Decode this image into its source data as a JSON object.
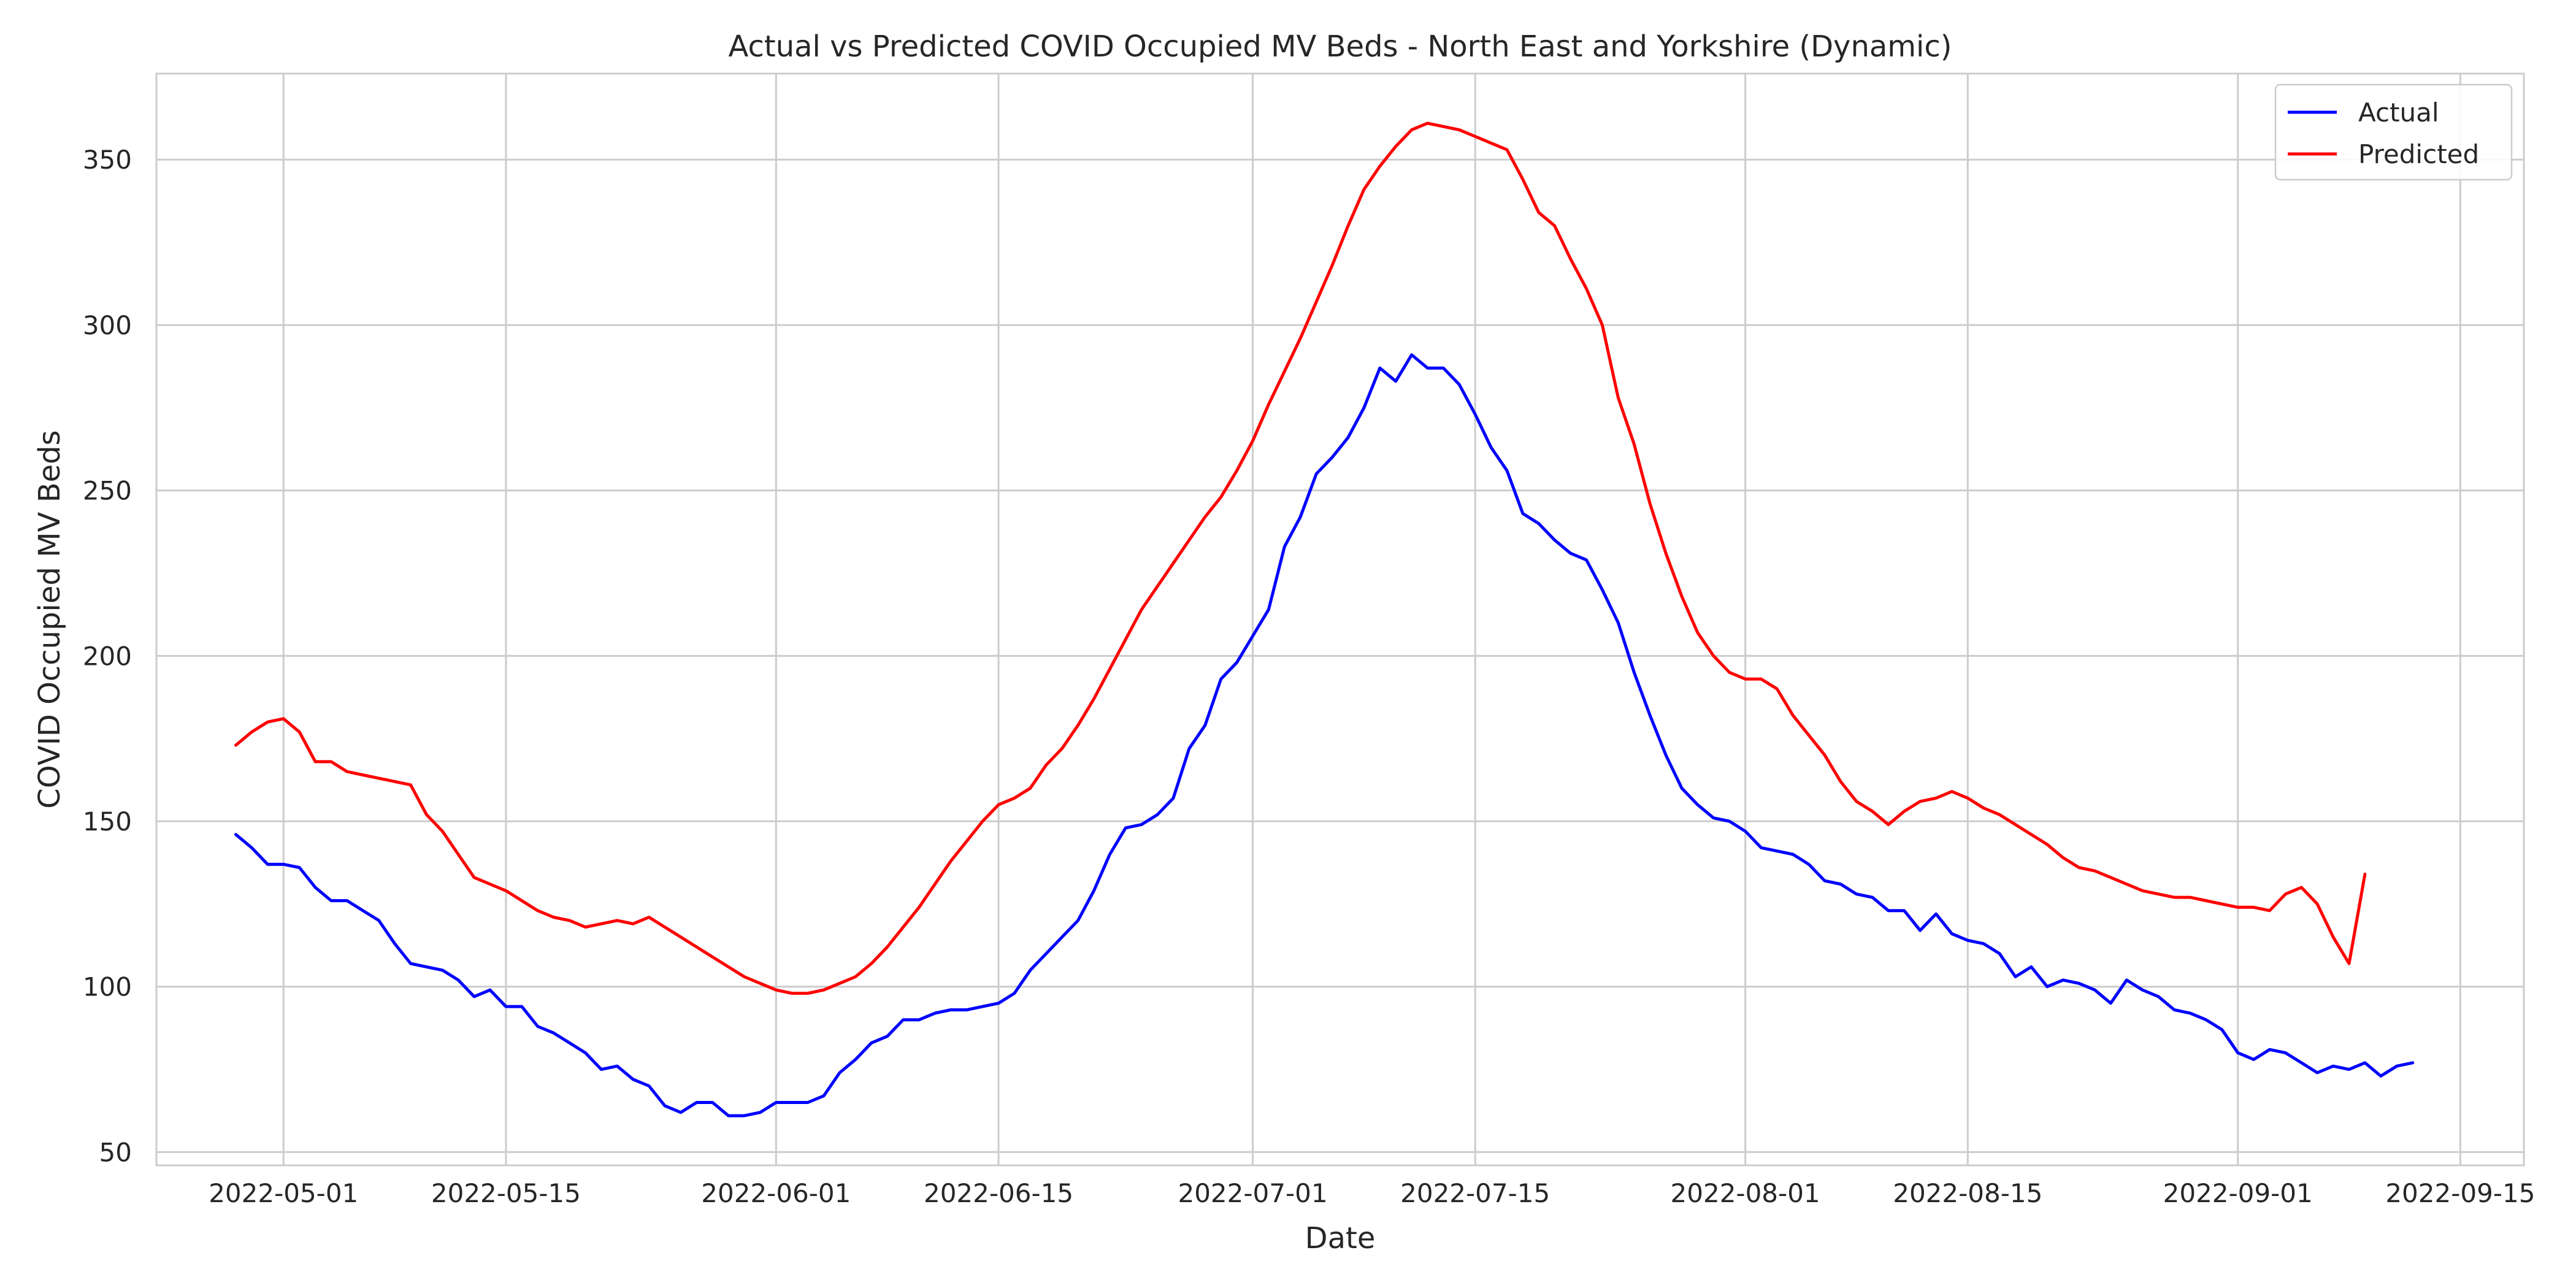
{
  "chart_data": {
    "type": "line",
    "title": "Actual vs Predicted COVID Occupied MV Beds - North East and Yorkshire (Dynamic)",
    "xlabel": "Date",
    "ylabel": "COVID Occupied MV Beds",
    "x_axis_type": "date",
    "xlim": [
      "2022-04-23",
      "2022-09-19"
    ],
    "ylim": [
      46,
      376
    ],
    "xticks": [
      "2022-05-01",
      "2022-05-15",
      "2022-06-01",
      "2022-06-15",
      "2022-07-01",
      "2022-07-15",
      "2022-08-01",
      "2022-08-15",
      "2022-09-01",
      "2022-09-15"
    ],
    "yticks": [
      50,
      100,
      150,
      200,
      250,
      300,
      350
    ],
    "grid": true,
    "legend_position": "top-right",
    "start_date": "2022-04-28",
    "series": [
      {
        "name": "Actual",
        "color": "#0000ff",
        "values": [
          146,
          142,
          137,
          137,
          136,
          130,
          126,
          126,
          123,
          120,
          113,
          107,
          106,
          105,
          102,
          97,
          99,
          94,
          94,
          88,
          86,
          83,
          80,
          75,
          76,
          72,
          70,
          64,
          62,
          65,
          65,
          61,
          61,
          62,
          65,
          65,
          65,
          67,
          74,
          78,
          83,
          85,
          90,
          90,
          92,
          93,
          93,
          94,
          95,
          98,
          105,
          110,
          115,
          120,
          129,
          140,
          148,
          149,
          152,
          157,
          172,
          179,
          193,
          198,
          206,
          214,
          233,
          242,
          255,
          260,
          266,
          275,
          287,
          283,
          291,
          287,
          287,
          282,
          273,
          263,
          256,
          243,
          240,
          235,
          231,
          229,
          220,
          210,
          195,
          182,
          170,
          160,
          155,
          151,
          150,
          147,
          142,
          141,
          140,
          137,
          132,
          131,
          128,
          127,
          123,
          123,
          117,
          122,
          116,
          114,
          113,
          110,
          103,
          106,
          100,
          102,
          101,
          99,
          95,
          102,
          99,
          97,
          93,
          92,
          90,
          87,
          80,
          78,
          81,
          80,
          77,
          74,
          76,
          75,
          77,
          73,
          76,
          77
        ]
      },
      {
        "name": "Predicted",
        "color": "#ff0000",
        "values": [
          173,
          177,
          180,
          181,
          177,
          168,
          168,
          165,
          164,
          163,
          162,
          161,
          152,
          147,
          140,
          133,
          131,
          129,
          126,
          123,
          121,
          120,
          118,
          119,
          120,
          119,
          121,
          118,
          115,
          112,
          109,
          106,
          103,
          101,
          99,
          98,
          98,
          99,
          101,
          103,
          107,
          112,
          118,
          124,
          131,
          138,
          144,
          150,
          155,
          157,
          160,
          167,
          172,
          179,
          187,
          196,
          205,
          214,
          221,
          228,
          235,
          242,
          248,
          256,
          265,
          276,
          286,
          296,
          307,
          318,
          330,
          341,
          348,
          354,
          359,
          361,
          360,
          359,
          357,
          355,
          353,
          344,
          334,
          330,
          320,
          311,
          300,
          278,
          264,
          246,
          231,
          218,
          207,
          200,
          195,
          193,
          193,
          190,
          182,
          176,
          170,
          162,
          156,
          153,
          149,
          153,
          156,
          157,
          159,
          157,
          154,
          152,
          149,
          146,
          143,
          139,
          136,
          135,
          133,
          131,
          129,
          128,
          127,
          127,
          126,
          125,
          124,
          124,
          123,
          128,
          130,
          125,
          115,
          107,
          134
        ]
      }
    ]
  }
}
